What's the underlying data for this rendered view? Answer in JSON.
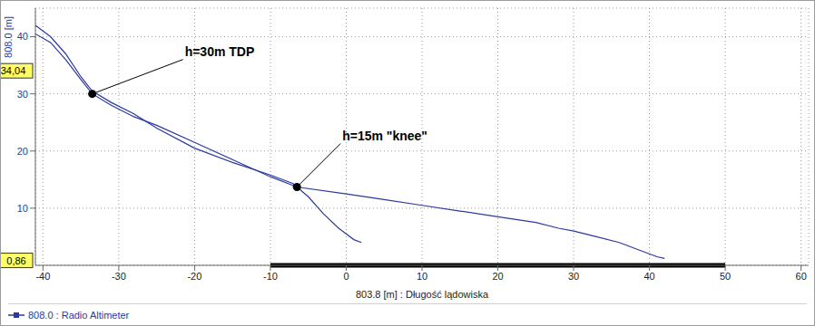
{
  "chart_data": {
    "type": "line",
    "x_label": "803.8 [m] : Długość lądowiska",
    "y_label": "808.0 [m]",
    "xlim": [
      -41,
      61
    ],
    "xticks": [
      -40,
      -30,
      -20,
      -10,
      0,
      10,
      20,
      30,
      40,
      50,
      60
    ],
    "ylim": [
      0,
      45
    ],
    "yticks": [
      10,
      20,
      30,
      40
    ],
    "grid": true,
    "legend": "bottom-left",
    "series": [
      {
        "name": "808.0 : Radio Altimeter",
        "color": "#2b3a9e",
        "x": [
          -41,
          -39,
          -37,
          -35,
          -33.5,
          -31,
          -28,
          -25,
          -20,
          -15,
          -10,
          -6.5,
          0,
          5,
          10,
          15,
          20,
          25,
          28,
          30,
          33,
          36,
          39,
          41,
          42
        ],
        "values": [
          40.5,
          39,
          36,
          32.5,
          30,
          28,
          26,
          24.5,
          21.5,
          18.5,
          15.5,
          13.7,
          12.5,
          11.5,
          10.5,
          9.5,
          8.5,
          7.5,
          6.5,
          6,
          5,
          4,
          2.5,
          1.5,
          1.2
        ]
      },
      {
        "name": "808.0 : Radio Altimeter",
        "color": "#2b3a9e",
        "x": [
          -41,
          -39,
          -37,
          -35,
          -33.5,
          -31,
          -28,
          -25,
          -20,
          -15,
          -10,
          -7,
          -5,
          -3,
          -1,
          0,
          1,
          2
        ],
        "values": [
          42,
          40,
          37,
          33,
          30.5,
          28.5,
          26.5,
          24,
          20.5,
          18,
          15.8,
          14.3,
          12,
          9,
          6.5,
          5.5,
          4.5,
          4
        ]
      }
    ],
    "annotations": [
      {
        "text": "h=30m TDP",
        "x": -33.5,
        "y": 30
      },
      {
        "text": "h=15m \"knee\"",
        "x": -6.5,
        "y": 13.7
      }
    ],
    "y_markers": [
      {
        "value": 34.04,
        "label": "34,04"
      },
      {
        "value": 0.86,
        "label": "0,86"
      }
    ],
    "landing_pad": {
      "x": [
        -10,
        50
      ],
      "y": 0
    }
  }
}
